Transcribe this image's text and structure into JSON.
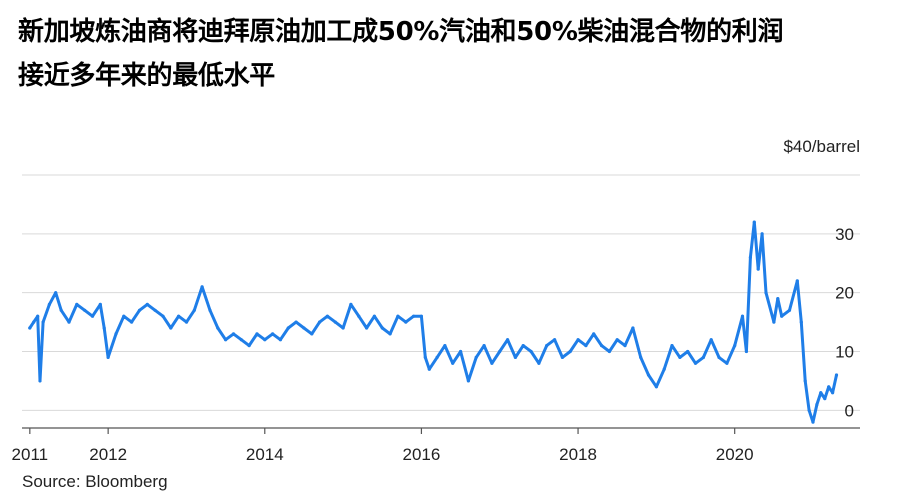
{
  "title_line1": "新加坡炼油商将迪拜原油加工成50%汽油和50%柴油混合物的利润",
  "title_line2": "接近多年来的最低水平",
  "source": "Source: Bloomberg",
  "colors": {
    "line": "#1f7ee8",
    "grid": "#d9d9d9",
    "axis": "#555555",
    "text": "#222222"
  },
  "chart_data": {
    "type": "line",
    "title": "新加坡炼油商将迪拜原油加工成50%汽油和50%柴油混合物的利润接近多年来的最低水平",
    "ylabel": "$40/barrel",
    "xlabel": "",
    "ylim": [
      -3,
      40
    ],
    "xlim": [
      2010.9,
      2021.6
    ],
    "y_ticks": [
      0,
      10,
      20,
      30
    ],
    "y_tick_labels": [
      "0",
      "10",
      "20",
      "30"
    ],
    "x_ticks": [
      2011,
      2012,
      2014,
      2016,
      2018,
      2020
    ],
    "x_tick_labels": [
      "2011",
      "2012",
      "2014",
      "2016",
      "2018",
      "2020"
    ],
    "grid": true,
    "series": [
      {
        "values": [
          [
            2011.0,
            14
          ],
          [
            2011.05,
            15
          ],
          [
            2011.1,
            16
          ],
          [
            2011.13,
            5
          ],
          [
            2011.17,
            15
          ],
          [
            2011.25,
            18
          ],
          [
            2011.33,
            20
          ],
          [
            2011.4,
            17
          ],
          [
            2011.5,
            15
          ],
          [
            2011.6,
            18
          ],
          [
            2011.7,
            17
          ],
          [
            2011.8,
            16
          ],
          [
            2011.9,
            18
          ],
          [
            2011.95,
            14
          ],
          [
            2012.0,
            9
          ],
          [
            2012.1,
            13
          ],
          [
            2012.2,
            16
          ],
          [
            2012.3,
            15
          ],
          [
            2012.4,
            17
          ],
          [
            2012.5,
            18
          ],
          [
            2012.6,
            17
          ],
          [
            2012.7,
            16
          ],
          [
            2012.8,
            14
          ],
          [
            2012.9,
            16
          ],
          [
            2013.0,
            15
          ],
          [
            2013.1,
            17
          ],
          [
            2013.2,
            21
          ],
          [
            2013.3,
            17
          ],
          [
            2013.4,
            14
          ],
          [
            2013.5,
            12
          ],
          [
            2013.6,
            13
          ],
          [
            2013.7,
            12
          ],
          [
            2013.8,
            11
          ],
          [
            2013.9,
            13
          ],
          [
            2014.0,
            12
          ],
          [
            2014.1,
            13
          ],
          [
            2014.2,
            12
          ],
          [
            2014.3,
            14
          ],
          [
            2014.4,
            15
          ],
          [
            2014.5,
            14
          ],
          [
            2014.6,
            13
          ],
          [
            2014.7,
            15
          ],
          [
            2014.8,
            16
          ],
          [
            2014.9,
            15
          ],
          [
            2015.0,
            14
          ],
          [
            2015.1,
            18
          ],
          [
            2015.2,
            16
          ],
          [
            2015.3,
            14
          ],
          [
            2015.4,
            16
          ],
          [
            2015.5,
            14
          ],
          [
            2015.6,
            13
          ],
          [
            2015.7,
            16
          ],
          [
            2015.8,
            15
          ],
          [
            2015.9,
            16
          ],
          [
            2016.0,
            16
          ],
          [
            2016.05,
            9
          ],
          [
            2016.1,
            7
          ],
          [
            2016.2,
            9
          ],
          [
            2016.3,
            11
          ],
          [
            2016.4,
            8
          ],
          [
            2016.5,
            10
          ],
          [
            2016.6,
            5
          ],
          [
            2016.7,
            9
          ],
          [
            2016.8,
            11
          ],
          [
            2016.9,
            8
          ],
          [
            2017.0,
            10
          ],
          [
            2017.1,
            12
          ],
          [
            2017.2,
            9
          ],
          [
            2017.3,
            11
          ],
          [
            2017.4,
            10
          ],
          [
            2017.5,
            8
          ],
          [
            2017.6,
            11
          ],
          [
            2017.7,
            12
          ],
          [
            2017.8,
            9
          ],
          [
            2017.9,
            10
          ],
          [
            2018.0,
            12
          ],
          [
            2018.1,
            11
          ],
          [
            2018.2,
            13
          ],
          [
            2018.3,
            11
          ],
          [
            2018.4,
            10
          ],
          [
            2018.5,
            12
          ],
          [
            2018.6,
            11
          ],
          [
            2018.7,
            14
          ],
          [
            2018.8,
            9
          ],
          [
            2018.9,
            6
          ],
          [
            2019.0,
            4
          ],
          [
            2019.1,
            7
          ],
          [
            2019.2,
            11
          ],
          [
            2019.3,
            9
          ],
          [
            2019.4,
            10
          ],
          [
            2019.5,
            8
          ],
          [
            2019.6,
            9
          ],
          [
            2019.7,
            12
          ],
          [
            2019.8,
            9
          ],
          [
            2019.9,
            8
          ],
          [
            2020.0,
            11
          ],
          [
            2020.1,
            16
          ],
          [
            2020.15,
            10
          ],
          [
            2020.2,
            26
          ],
          [
            2020.25,
            32
          ],
          [
            2020.3,
            24
          ],
          [
            2020.35,
            30
          ],
          [
            2020.4,
            20
          ],
          [
            2020.5,
            15
          ],
          [
            2020.55,
            19
          ],
          [
            2020.6,
            16
          ],
          [
            2020.7,
            17
          ],
          [
            2020.8,
            22
          ],
          [
            2020.85,
            15
          ],
          [
            2020.9,
            5
          ],
          [
            2020.95,
            0
          ],
          [
            2021.0,
            -2
          ],
          [
            2021.05,
            1
          ],
          [
            2021.1,
            3
          ],
          [
            2021.15,
            2
          ],
          [
            2021.2,
            4
          ],
          [
            2021.25,
            3
          ],
          [
            2021.3,
            6
          ]
        ]
      }
    ]
  }
}
